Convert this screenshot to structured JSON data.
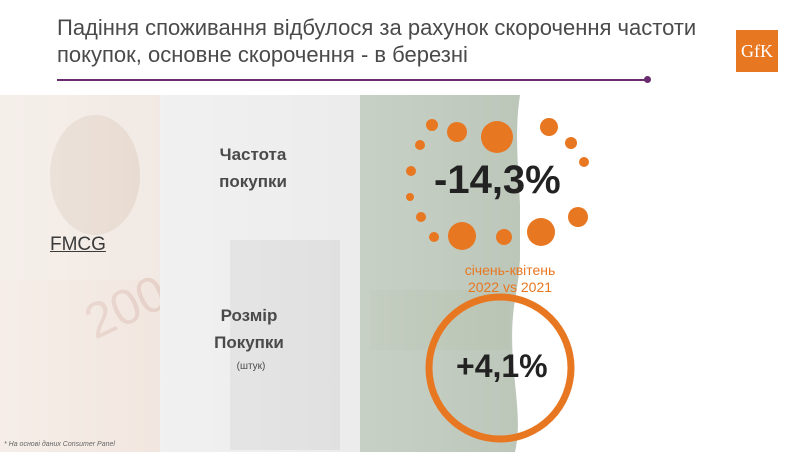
{
  "title": "Падіння споживання відбулося за рахунок скорочення частоти покупок, основне скорочення - в березні",
  "logo": "GfK",
  "section": "FMCG",
  "metrics": {
    "frequency": {
      "label_line1": "Частота",
      "label_line2": "покупки",
      "value": "-14,3%"
    },
    "size": {
      "label_line1": "Розмір",
      "label_line2": "Покупки",
      "unit": "(штук)",
      "value": "+4,1%"
    }
  },
  "period": {
    "line1": "січень-квітень",
    "line2": "2022 vs 2021"
  },
  "footnote": "* На основі даних Consumer Panel",
  "colors": {
    "accent": "#e87722",
    "rule": "#6b2c6f",
    "text": "#4a4a4a"
  }
}
